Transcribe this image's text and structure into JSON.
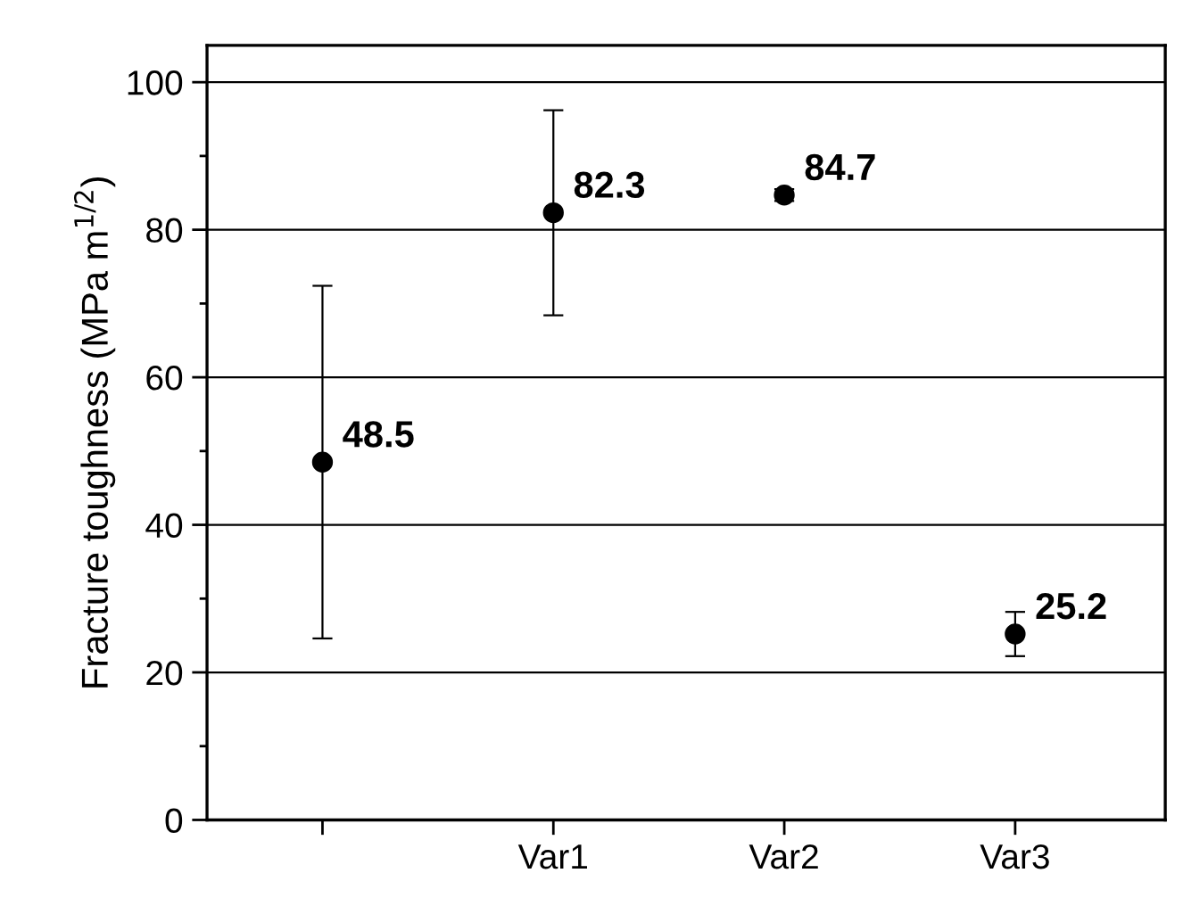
{
  "chart_data": {
    "type": "scatter",
    "categories": [
      null,
      "Var1",
      "Var2",
      "Var3"
    ],
    "values": [
      48.5,
      82.3,
      84.7,
      25.2
    ],
    "errors": [
      23.9,
      13.9,
      0.8,
      3.0
    ],
    "color": "#000000",
    "marker": "circle",
    "data_labels": true,
    "ylabel": "Fracture toughness (MPa m$^{1/2}$)",
    "ylim": [
      0,
      105
    ],
    "yticks": [
      0,
      20,
      40,
      60,
      80,
      100
    ],
    "grid": "y"
  }
}
